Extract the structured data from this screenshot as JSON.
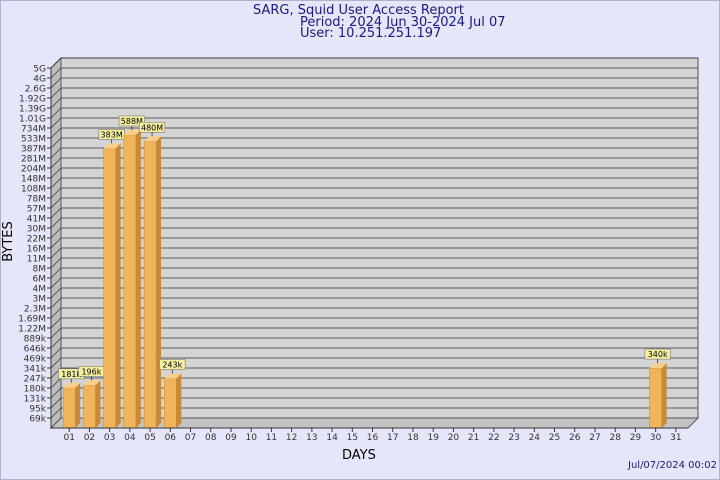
{
  "header": {
    "title": "SARG, Squid User Access Report",
    "period": "Period: 2024 Jun 30-2024 Jul 07",
    "user": "User: 10.251.251.197"
  },
  "footer": {
    "timestamp": "Jul/07/2024 00:02"
  },
  "colors": {
    "background": "#e6e6fa",
    "plot": "#d4d4d4",
    "bar": "#f0b45a",
    "bar_dark": "#c88a36",
    "label_box": "#f5f0a0",
    "title": "#1a1a80"
  },
  "chart_data": {
    "type": "bar",
    "title": "SARG, Squid User Access Report",
    "xlabel": "DAYS",
    "ylabel": "BYTES",
    "y_scale": "log",
    "grid": true,
    "legend": "none",
    "y_ticks": [
      "69k",
      "95k",
      "131k",
      "180k",
      "247k",
      "341k",
      "469k",
      "646k",
      "889k",
      "1.22M",
      "1.69M",
      "2.3M",
      "3M",
      "4M",
      "6M",
      "8M",
      "11M",
      "16M",
      "22M",
      "30M",
      "41M",
      "57M",
      "78M",
      "108M",
      "148M",
      "204M",
      "281M",
      "387M",
      "533M",
      "734M",
      "1.01G",
      "1.39G",
      "1.92G",
      "2.6G",
      "4G",
      "5G"
    ],
    "categories": [
      "01",
      "02",
      "03",
      "04",
      "05",
      "06",
      "07",
      "08",
      "09",
      "10",
      "11",
      "12",
      "13",
      "14",
      "15",
      "16",
      "17",
      "18",
      "19",
      "20",
      "21",
      "22",
      "23",
      "24",
      "25",
      "26",
      "27",
      "28",
      "29",
      "30",
      "31"
    ],
    "values": [
      181000,
      196000,
      383000000,
      588000000,
      480000000,
      243000,
      null,
      null,
      null,
      null,
      null,
      null,
      null,
      null,
      null,
      null,
      null,
      null,
      null,
      null,
      null,
      null,
      null,
      null,
      null,
      null,
      null,
      null,
      null,
      340000,
      null
    ],
    "data_labels": [
      "181k",
      "196k",
      "383M",
      "588M",
      "480M",
      "243k",
      "",
      "",
      "",
      "",
      "",
      "",
      "",
      "",
      "",
      "",
      "",
      "",
      "",
      "",
      "",
      "",
      "",
      "",
      "",
      "",
      "",
      "",
      "",
      "340k",
      ""
    ]
  }
}
